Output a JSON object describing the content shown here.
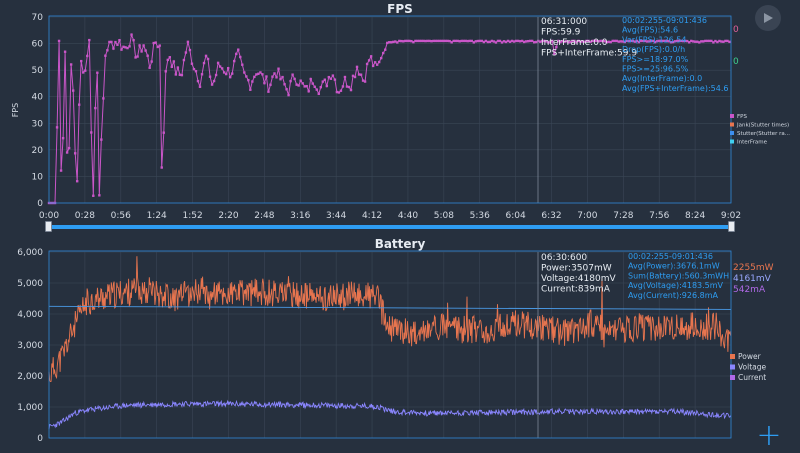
{
  "fps_panel": {
    "title": "FPS",
    "ylabel": "FPS",
    "y_ticks": [
      "70",
      "60",
      "50",
      "40",
      "30",
      "20",
      "10",
      "0"
    ],
    "x_ticks": [
      "0:00",
      "0:28",
      "0:56",
      "1:24",
      "1:52",
      "2:20",
      "2:48",
      "3:16",
      "3:44",
      "4:12",
      "4:40",
      "5:08",
      "5:36",
      "6:04",
      "6:32",
      "7:00",
      "7:28",
      "7:56",
      "8:24",
      "9:02"
    ],
    "tooltip": [
      "06:31:000",
      "FPS:59.9",
      "InterFrame:0.0",
      "FPS+InterFrame:59.9"
    ],
    "stats": [
      "00:02:255-09:01:436",
      "Avg(FPS):54.6",
      "Var(FPS):126.54",
      "Drop(FPS):0.0/h",
      "FPS>=18:97.0%",
      "FPS>=25:96.5%",
      "Avg(InterFrame):0.0",
      "Avg(FPS+InterFrame):54.6"
    ],
    "side_values": [
      {
        "text": "0",
        "color": "#e0609a"
      },
      {
        "text": "0",
        "color": "#3ecf8e"
      }
    ],
    "legend": [
      "FPS",
      "Jank(Stutter times)",
      "Stutter(Stutter ra...",
      "InterFrame"
    ],
    "legend_colors": [
      "#c956c8",
      "#e8754f",
      "#3d8ff0",
      "#40d0ef"
    ]
  },
  "battery_panel": {
    "title": "Battery",
    "y_ticks": [
      "6,000",
      "5,000",
      "4,000",
      "3,000",
      "2,000",
      "1,000",
      "0"
    ],
    "tooltip": [
      "06:30:600",
      "Power:3507mW",
      "Voltage:4180mV",
      "Current:839mA"
    ],
    "stats": [
      "00:02:255-09:01:436",
      "Avg(Power):3676.1mW",
      "Sum(Battery):560.3mWH",
      "Avg(Voltage):4183.5mV",
      "Avg(Current):926.8mA"
    ],
    "side_values": [
      {
        "text": "2255mW",
        "color": "#e8754f"
      },
      {
        "text": "4161mV",
        "color": "#9aa8ff"
      },
      {
        "text": "542mA",
        "color": "#b069e8"
      }
    ],
    "legend": [
      "Power",
      "Voltage",
      "Current"
    ],
    "legend_colors": [
      "#e8754f",
      "#8a86ff",
      "#b069e8"
    ]
  },
  "slider": {
    "start": 0.0,
    "end": 1.0
  },
  "chart_data": [
    {
      "type": "line",
      "title": "FPS",
      "ylabel": "FPS",
      "ylim": [
        0,
        70
      ],
      "x_range_seconds": [
        0,
        542
      ],
      "series": [
        {
          "name": "FPS",
          "x": [
            0,
            5,
            8,
            10,
            13,
            15,
            18,
            22,
            25,
            28,
            32,
            35,
            38,
            40,
            45,
            50,
            55,
            60,
            65,
            70,
            75,
            80,
            85,
            88,
            90,
            92,
            95,
            100,
            105,
            110,
            115,
            120,
            125,
            130,
            135,
            140,
            145,
            150,
            155,
            160,
            165,
            170,
            175,
            180,
            185,
            190,
            195,
            200,
            205,
            210,
            215,
            220,
            225,
            230,
            235,
            240,
            245,
            250,
            255,
            260,
            265,
            268,
            270,
            280,
            300,
            340,
            380,
            400,
            402,
            404,
            440,
            480,
            520,
            542
          ],
          "values": [
            0,
            0,
            61,
            0,
            61,
            1,
            60,
            1,
            55,
            47,
            61,
            0,
            60,
            5,
            58,
            60,
            61,
            58,
            62,
            55,
            60,
            52,
            61,
            59,
            3,
            45,
            57,
            50,
            48,
            60,
            52,
            46,
            55,
            44,
            52,
            50,
            49,
            56,
            48,
            45,
            50,
            47,
            44,
            50,
            46,
            42,
            48,
            45,
            42,
            47,
            43,
            45,
            50,
            42,
            46,
            45,
            52,
            46,
            55,
            50,
            56,
            59,
            61,
            61,
            61,
            61,
            61,
            61,
            55,
            61,
            61,
            61,
            61,
            61
          ]
        },
        {
          "name": "Jank(Stutter times)",
          "values": []
        },
        {
          "name": "Stutter(Stutter ra...",
          "values": []
        },
        {
          "name": "InterFrame",
          "values": []
        }
      ]
    },
    {
      "type": "line",
      "title": "Battery",
      "ylim": [
        0,
        6000
      ],
      "x_range_seconds": [
        0,
        542
      ],
      "series": [
        {
          "name": "Power",
          "x": [
            0,
            10,
            20,
            30,
            40,
            50,
            60,
            80,
            100,
            120,
            140,
            160,
            180,
            200,
            220,
            240,
            260,
            270,
            275,
            290,
            310,
            330,
            350,
            370,
            390,
            410,
            430,
            450,
            470,
            490,
            510,
            530,
            542
          ],
          "values": [
            2000,
            2600,
            3600,
            4400,
            4500,
            4600,
            4700,
            4800,
            4500,
            4800,
            4600,
            4700,
            4700,
            4600,
            4500,
            4600,
            4600,
            3500,
            3500,
            3400,
            3600,
            3500,
            3500,
            3700,
            3600,
            3400,
            3700,
            3400,
            3600,
            3500,
            3600,
            3600,
            3000
          ]
        },
        {
          "name": "Voltage",
          "x": [
            0,
            542
          ],
          "values": [
            4250,
            4150
          ]
        },
        {
          "name": "Current",
          "x": [
            0,
            10,
            20,
            30,
            40,
            50,
            60,
            100,
            140,
            180,
            220,
            260,
            270,
            275,
            300,
            350,
            400,
            450,
            500,
            542
          ],
          "values": [
            350,
            500,
            800,
            900,
            950,
            1000,
            1050,
            1100,
            1100,
            1080,
            1050,
            1020,
            900,
            850,
            800,
            820,
            850,
            850,
            850,
            700
          ]
        }
      ]
    }
  ]
}
